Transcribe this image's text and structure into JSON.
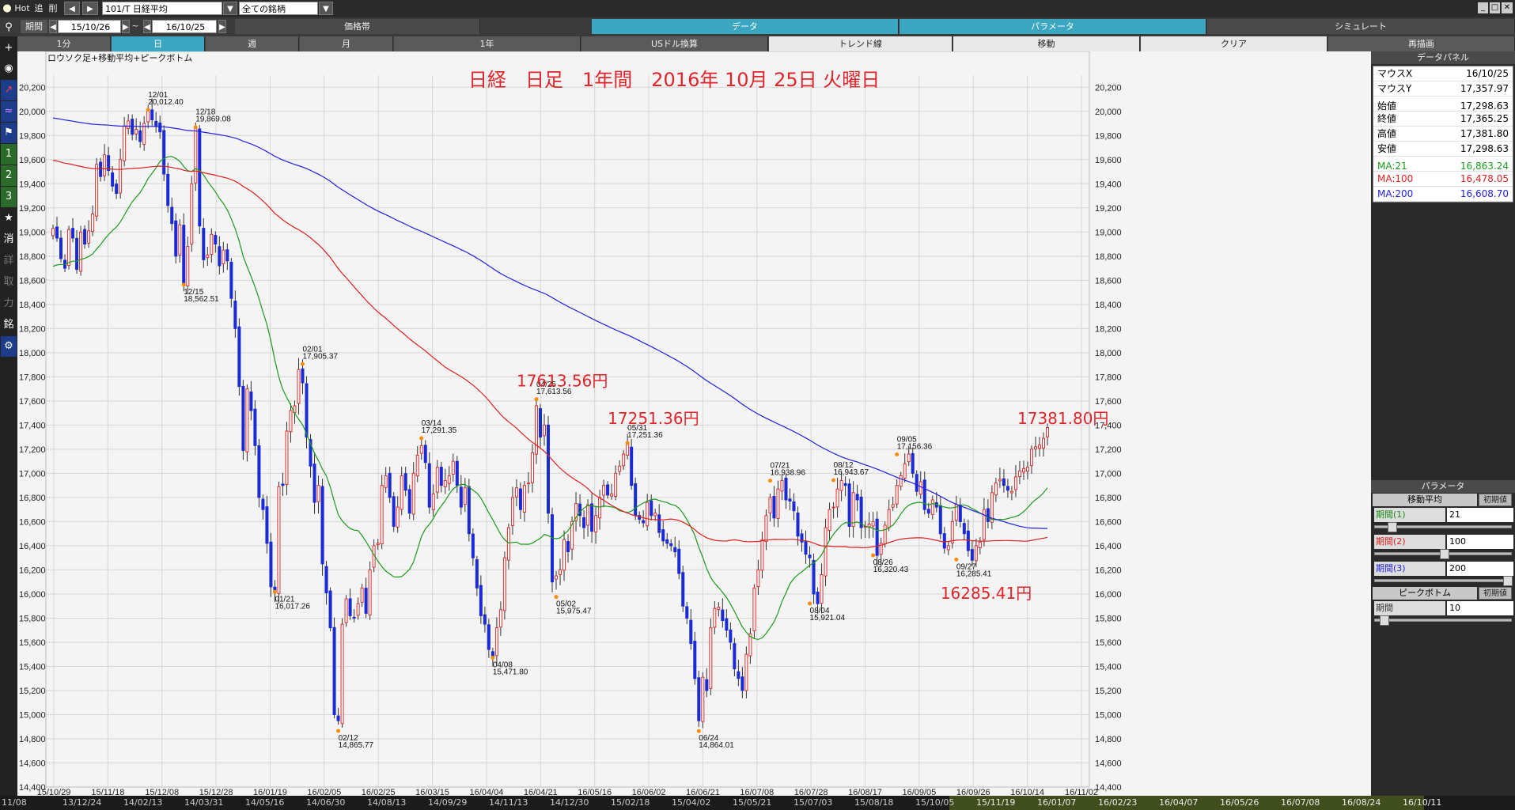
{
  "toolbar": {
    "hot": "Hot",
    "tsui": "追",
    "sakujo": "削",
    "symbol": "101/T 日経平均",
    "universe": "全ての銘柄",
    "period_label": "期間",
    "date_from": "15/10/26",
    "sep": "~",
    "date_to": "16/10/25",
    "tab_price": "価格帯",
    "tab_data": "データ",
    "tab_param": "パラメータ",
    "tab_sim": "シミュレート",
    "tf": [
      "1分",
      "日",
      "週",
      "月",
      "1年",
      "USドル換算",
      "トレンド線",
      "移動",
      "クリア",
      "再描画"
    ]
  },
  "lefttools": [
    "+",
    "消",
    "詳",
    "取",
    "力",
    "銘"
  ],
  "chart": {
    "subtitle": "ロウソク足+移動平均+ピークボトム",
    "title": "日経　日足　1年間　2016年 10月 25日 火曜日",
    "ylim": [
      14400,
      20300
    ],
    "yticks": [
      "20,200",
      "20,000",
      "19,800",
      "19,600",
      "19,400",
      "19,200",
      "19,000",
      "18,800",
      "18,600",
      "18,400",
      "18,200",
      "18,000",
      "17,800",
      "17,600",
      "17,400",
      "17,200",
      "17,000",
      "16,800",
      "16,600",
      "16,400",
      "16,200",
      "16,000",
      "15,800",
      "15,600",
      "15,400",
      "15,200",
      "15,000",
      "14,800",
      "14,600",
      "14,400"
    ],
    "xticks": [
      "15/10/29",
      "15/11/18",
      "15/12/08",
      "15/12/28",
      "16/01/19",
      "16/02/05",
      "16/02/25",
      "16/03/15",
      "16/04/04",
      "16/04/21",
      "16/05/16",
      "16/06/02",
      "16/06/21",
      "16/07/08",
      "16/07/28",
      "16/08/17",
      "16/09/05",
      "16/09/26",
      "16/10/14",
      "16/11/02"
    ],
    "big_labels": [
      {
        "text": "17613.56円",
        "date": "16/04/25",
        "y": 17720
      },
      {
        "text": "17251.36円",
        "date": "16/05/31",
        "y": 17410
      },
      {
        "text": "16285.41円",
        "date": "16/09/27",
        "y": 15960
      },
      {
        "text": "17381.80円",
        "date": "16/10/25",
        "y": 17410
      }
    ],
    "peaks": [
      {
        "date": "12/01",
        "value": "20,012.40",
        "y": 20012.4,
        "i": 24,
        "dir": "up"
      },
      {
        "date": "12/18",
        "value": "19,869.08",
        "y": 19869.08,
        "i": 36,
        "dir": "up"
      },
      {
        "date": "12/15",
        "value": "18,562.51",
        "y": 18562.51,
        "i": 33,
        "dir": "down"
      },
      {
        "date": "01/21",
        "value": "16,017.26",
        "y": 16017.26,
        "i": 56,
        "dir": "down"
      },
      {
        "date": "02/01",
        "value": "17,905.37",
        "y": 17905.37,
        "i": 63,
        "dir": "up"
      },
      {
        "date": "02/12",
        "value": "14,865.77",
        "y": 14865.77,
        "i": 72,
        "dir": "down"
      },
      {
        "date": "03/14",
        "value": "17,291.35",
        "y": 17291.35,
        "i": 93,
        "dir": "up"
      },
      {
        "date": "04/08",
        "value": "15,471.80",
        "y": 15471.8,
        "i": 111,
        "dir": "down"
      },
      {
        "date": "04/25",
        "value": "17,613.56",
        "y": 17613.56,
        "i": 122,
        "dir": "up"
      },
      {
        "date": "05/02",
        "value": "15,975.47",
        "y": 15975.47,
        "i": 127,
        "dir": "down"
      },
      {
        "date": "05/31",
        "value": "17,251.36",
        "y": 17251.36,
        "i": 145,
        "dir": "up"
      },
      {
        "date": "06/24",
        "value": "14,864.01",
        "y": 14864.01,
        "i": 163,
        "dir": "down"
      },
      {
        "date": "07/21",
        "value": "16,938.96",
        "y": 16938.96,
        "i": 181,
        "dir": "up"
      },
      {
        "date": "08/04",
        "value": "15,921.04",
        "y": 15921.04,
        "i": 191,
        "dir": "down"
      },
      {
        "date": "08/12",
        "value": "16,943.67",
        "y": 16943.67,
        "i": 197,
        "dir": "up"
      },
      {
        "date": "08/26",
        "value": "16,320.43",
        "y": 16320.43,
        "i": 207,
        "dir": "down"
      },
      {
        "date": "09/05",
        "value": "17,156.36",
        "y": 17156.36,
        "i": 213,
        "dir": "up"
      },
      {
        "date": "09/27",
        "value": "16,285.41",
        "y": 16285.41,
        "i": 228,
        "dir": "down"
      }
    ]
  },
  "chart_data": {
    "type": "line",
    "title": "日経　日足　1年間　2016年 10月 25日 火曜日",
    "xlabel": "",
    "ylabel": "",
    "ylim": [
      14400,
      20300
    ],
    "grid": true,
    "closes": [
      19030,
      18950,
      18780,
      18700,
      19020,
      18950,
      18690,
      19000,
      18900,
      19010,
      19150,
      19560,
      19460,
      19640,
      19510,
      19380,
      19320,
      19600,
      19880,
      19920,
      19810,
      19850,
      19750,
      19900,
      20012,
      19930,
      19880,
      19830,
      19480,
      19220,
      19070,
      18800,
      19060,
      18570,
      18880,
      19400,
      19860,
      19050,
      18770,
      18810,
      18980,
      18900,
      18720,
      18850,
      18760,
      18450,
      18200,
      17720,
      17190,
      17700,
      17520,
      17230,
      16800,
      16700,
      16420,
      16060,
      16020,
      16890,
      16900,
      17350,
      17520,
      17560,
      17860,
      17750,
      17300,
      17060,
      16760,
      16900,
      16250,
      16010,
      15720,
      15000,
      14950,
      15750,
      15960,
      15820,
      15800,
      15920,
      16050,
      15840,
      16200,
      16400,
      16420,
      16900,
      16980,
      16800,
      16560,
      16720,
      16980,
      16860,
      16670,
      17000,
      17150,
      17230,
      17090,
      16720,
      16830,
      17050,
      16900,
      16940,
      16980,
      17100,
      16900,
      16720,
      16880,
      16500,
      16300,
      16050,
      15820,
      15750,
      15540,
      15470,
      15720,
      15870,
      16300,
      16550,
      16800,
      16880,
      16700,
      16900,
      16920,
      17170,
      17560,
      17300,
      17400,
      16670,
      16100,
      16150,
      16200,
      16450,
      16350,
      16600,
      16750,
      16650,
      16550,
      16740,
      16520,
      16650,
      16800,
      16900,
      16820,
      16830,
      17000,
      17060,
      17160,
      17240,
      16900,
      16650,
      16620,
      16590,
      16760,
      16650,
      16670,
      16510,
      16440,
      16420,
      16400,
      16350,
      16170,
      15900,
      15800,
      15590,
      15300,
      14950,
      15310,
      15200,
      15720,
      15880,
      15890,
      15780,
      15700,
      15600,
      15380,
      15300,
      15200,
      15500,
      15670,
      16050,
      16200,
      16450,
      16650,
      16800,
      16630,
      16870,
      16940,
      16780,
      16770,
      16690,
      16480,
      16430,
      16330,
      16300,
      16000,
      15920,
      16160,
      16550,
      16700,
      16720,
      16870,
      16940,
      16900,
      16560,
      16840,
      16780,
      16550,
      16560,
      16580,
      16600,
      16320,
      16420,
      16570,
      16700,
      16740,
      16900,
      16980,
      17080,
      17160,
      17000,
      16850,
      16930,
      16700,
      16670,
      16780,
      16720,
      16500,
      16380,
      16400,
      16600,
      16740,
      16600,
      16500,
      16360,
      16280,
      16400,
      16430,
      16700,
      16600,
      16840,
      16920,
      16950,
      16900,
      16860,
      16850,
      16970,
      17020,
      17040,
      17050,
      17200,
      17220,
      17235,
      17290,
      17380
    ],
    "series": [
      {
        "name": "MA:21",
        "color": "#1a9a1a"
      },
      {
        "name": "MA:100",
        "color": "#dd2020"
      },
      {
        "name": "MA:200",
        "color": "#2020dd"
      }
    ]
  },
  "data_panel": {
    "header": "データパネル",
    "rows": [
      {
        "k": "マウスX",
        "v": "16/10/25"
      },
      {
        "k": "マウスY",
        "v": "17,357.97"
      },
      {
        "k": "始値",
        "v": "17,298.63"
      },
      {
        "k": "終値",
        "v": "17,365.25"
      },
      {
        "k": "高値",
        "v": "17,381.80"
      },
      {
        "k": "安値",
        "v": "17,298.63"
      }
    ],
    "ma": [
      {
        "k": "MA:21",
        "v": "16,863.24",
        "color": "#1a9a1a"
      },
      {
        "k": "MA:100",
        "v": "16,478.05",
        "color": "#dd2020"
      },
      {
        "k": "MA:200",
        "v": "16,608.70",
        "color": "#2020dd"
      }
    ]
  },
  "param_panel": {
    "header": "パラメータ",
    "section_ma": "移動平均",
    "reset": "初期値",
    "p1_label": "期間(1)",
    "p1": "21",
    "p2_label": "期間(2)",
    "p2": "100",
    "p3_label": "期間(3)",
    "p3": "200",
    "section_pb": "ピークボトム",
    "pb_label": "期間",
    "pb": "10"
  },
  "bottom_dates": [
    "11/08",
    "13/12/24",
    "14/02/13",
    "14/03/31",
    "14/05/16",
    "14/06/30",
    "14/08/13",
    "14/09/29",
    "14/11/13",
    "14/12/30",
    "15/02/18",
    "15/04/02",
    "15/05/21",
    "15/07/03",
    "15/08/18",
    "15/10/05",
    "15/11/19",
    "16/01/07",
    "16/02/23",
    "16/04/07",
    "16/05/26",
    "16/07/08",
    "16/08/24",
    "16/10/11"
  ]
}
